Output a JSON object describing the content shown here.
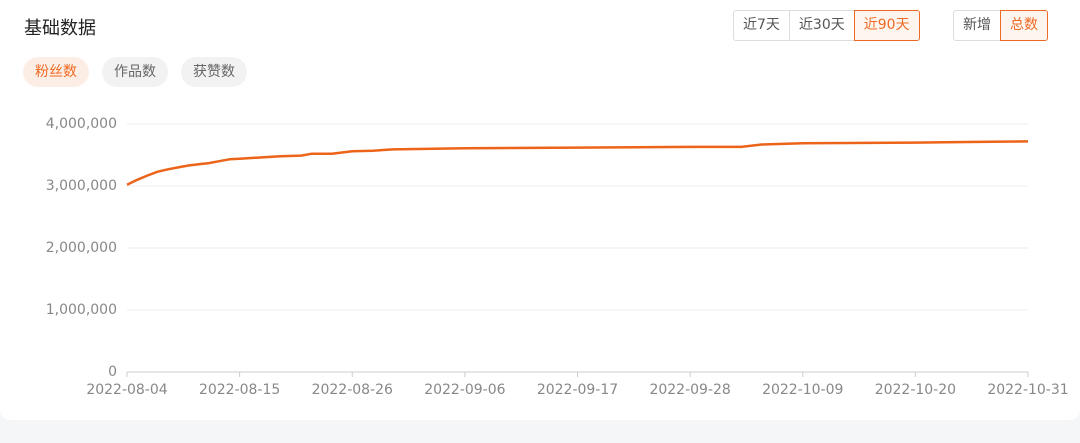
{
  "header": {
    "title": "基础数据"
  },
  "metric_tabs": [
    {
      "label": "粉丝数",
      "active": true
    },
    {
      "label": "作品数",
      "active": false
    },
    {
      "label": "获赞数",
      "active": false
    }
  ],
  "range_buttons": [
    {
      "label": "近7天",
      "active": false
    },
    {
      "label": "近30天",
      "active": false
    },
    {
      "label": "近90天",
      "active": true
    }
  ],
  "mode_buttons": [
    {
      "label": "新增",
      "active": false
    },
    {
      "label": "总数",
      "active": true
    }
  ],
  "chart_data": {
    "type": "line",
    "color": "#ec6419",
    "grid": true,
    "x": [
      "2022-08-04",
      "2022-08-05",
      "2022-08-06",
      "2022-08-07",
      "2022-08-08",
      "2022-08-09",
      "2022-08-10",
      "2022-08-11",
      "2022-08-12",
      "2022-08-13",
      "2022-08-14",
      "2022-08-15",
      "2022-08-17",
      "2022-08-19",
      "2022-08-21",
      "2022-08-22",
      "2022-08-24",
      "2022-08-26",
      "2022-08-28",
      "2022-08-30",
      "2022-09-06",
      "2022-09-17",
      "2022-09-28",
      "2022-10-03",
      "2022-10-05",
      "2022-10-09",
      "2022-10-20",
      "2022-10-25",
      "2022-10-31"
    ],
    "values": [
      3020000,
      3100000,
      3170000,
      3230000,
      3270000,
      3300000,
      3330000,
      3350000,
      3370000,
      3400000,
      3430000,
      3440000,
      3460000,
      3480000,
      3490000,
      3520000,
      3520000,
      3560000,
      3570000,
      3590000,
      3610000,
      3620000,
      3630000,
      3630000,
      3670000,
      3690000,
      3700000,
      3710000,
      3720000
    ],
    "xlim": [
      "2022-08-04",
      "2022-10-31"
    ],
    "xticks": [
      "2022-08-04",
      "2022-08-15",
      "2022-08-26",
      "2022-09-06",
      "2022-09-17",
      "2022-09-28",
      "2022-10-09",
      "2022-10-20",
      "2022-10-31"
    ],
    "ylim": [
      0,
      4000000
    ],
    "yticks": [
      0,
      {
        "value": 1000000,
        "label": "1,000,000"
      },
      {
        "value": 2000000,
        "label": "2,000,000"
      },
      {
        "value": 3000000,
        "label": "3,000,000"
      },
      {
        "value": 4000000,
        "label": "4,000,000"
      }
    ]
  }
}
